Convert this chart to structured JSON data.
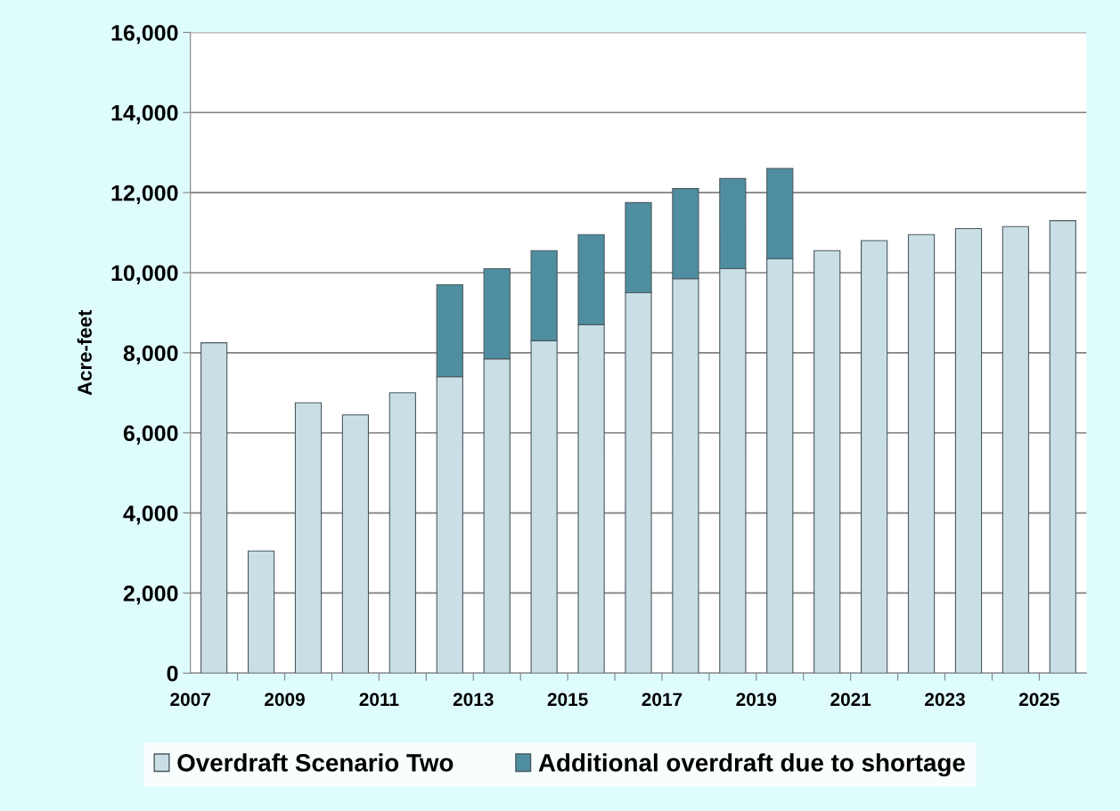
{
  "chart_data": {
    "type": "bar",
    "stacked": true,
    "ylabel": "Acre-feet",
    "categories": [
      "2007",
      null,
      "2009",
      null,
      "2011",
      null,
      "2013",
      null,
      "2015",
      null,
      "2017",
      null,
      "2019",
      null,
      "2021",
      null,
      "2023",
      null,
      "2025"
    ],
    "series": [
      {
        "name": "Overdraft Scenario Two",
        "color": "#c9dfe5",
        "values": [
          8250,
          3050,
          6750,
          6450,
          7000,
          7400,
          7850,
          8300,
          8700,
          9500,
          9850,
          10100,
          10350,
          10550,
          10800,
          10950,
          11100,
          11150,
          11300
        ]
      },
      {
        "name": "Additional overdraft due to shortage",
        "color": "#4f8ea0",
        "values": [
          null,
          null,
          null,
          null,
          null,
          2300,
          2250,
          2250,
          2250,
          2250,
          2250,
          2250,
          2250,
          null,
          null,
          null,
          null,
          null,
          null
        ]
      }
    ],
    "ylim": [
      0,
      16000
    ],
    "yticks": [
      {
        "value": 0,
        "label": "0"
      },
      {
        "value": 2000,
        "label": "2,000"
      },
      {
        "value": 4000,
        "label": "4,000"
      },
      {
        "value": 6000,
        "label": "6,000"
      },
      {
        "value": 8000,
        "label": "8,000"
      },
      {
        "value": 10000,
        "label": "10,000"
      },
      {
        "value": 12000,
        "label": "12,000"
      },
      {
        "value": 14000,
        "label": "14,000"
      },
      {
        "value": 16000,
        "label": "16,000"
      }
    ],
    "grid": "y",
    "legend": "bottom"
  }
}
